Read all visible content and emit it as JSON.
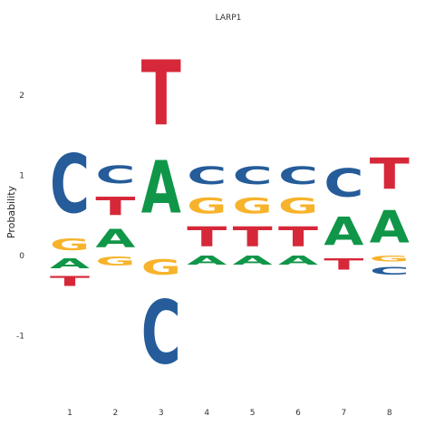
{
  "chart_data": {
    "type": "sequence-logo",
    "title": "LARP1",
    "xlabel": "",
    "ylabel": "Probability",
    "ylim": [
      -1.65,
      2.75
    ],
    "yticks": [
      -1,
      0,
      1,
      2
    ],
    "grid": false,
    "colors": {
      "A": "#109648",
      "C": "#255c99",
      "G": "#f7b32b",
      "T": "#d62839"
    },
    "positions": [
      {
        "x": "1",
        "stack": [
          {
            "base": "T",
            "y0": -0.42,
            "y1": -0.22
          },
          {
            "base": "A",
            "y0": -0.2,
            "y1": 0.0
          },
          {
            "base": "G",
            "y0": 0.02,
            "y1": 0.25
          },
          {
            "base": "C",
            "y0": 0.3,
            "y1": 1.48
          }
        ]
      },
      {
        "x": "2",
        "stack": [
          {
            "base": "G",
            "y0": -0.16,
            "y1": 0.02
          },
          {
            "base": "A",
            "y0": 0.03,
            "y1": 0.4
          },
          {
            "base": "T",
            "y0": 0.43,
            "y1": 0.8
          },
          {
            "base": "C",
            "y0": 0.83,
            "y1": 1.18
          }
        ]
      },
      {
        "x": "3",
        "stack": [
          {
            "base": "C",
            "y0": -1.6,
            "y1": -0.33
          },
          {
            "base": "G",
            "y0": -0.3,
            "y1": 0.0
          },
          {
            "base": "A",
            "y0": 0.32,
            "y1": 1.37
          },
          {
            "base": "T",
            "y0": 1.37,
            "y1": 2.67
          }
        ]
      },
      {
        "x": "4",
        "stack": [
          {
            "base": "A",
            "y0": -0.15,
            "y1": 0.02
          },
          {
            "base": "T",
            "y0": 0.03,
            "y1": 0.43
          },
          {
            "base": "G",
            "y0": 0.46,
            "y1": 0.78
          },
          {
            "base": "C",
            "y0": 0.82,
            "y1": 1.17
          }
        ]
      },
      {
        "x": "5",
        "stack": [
          {
            "base": "A",
            "y0": -0.15,
            "y1": 0.02
          },
          {
            "base": "T",
            "y0": 0.03,
            "y1": 0.43
          },
          {
            "base": "G",
            "y0": 0.46,
            "y1": 0.78
          },
          {
            "base": "C",
            "y0": 0.82,
            "y1": 1.17
          }
        ]
      },
      {
        "x": "6",
        "stack": [
          {
            "base": "A",
            "y0": -0.15,
            "y1": 0.02
          },
          {
            "base": "T",
            "y0": 0.03,
            "y1": 0.43
          },
          {
            "base": "G",
            "y0": 0.46,
            "y1": 0.78
          },
          {
            "base": "C",
            "y0": 0.82,
            "y1": 1.17
          }
        ]
      },
      {
        "x": "7",
        "stack": [
          {
            "base": "T",
            "y0": -0.22,
            "y1": 0.0
          },
          {
            "base": "A",
            "y0": 0.02,
            "y1": 0.58
          },
          {
            "base": "C",
            "y0": 0.62,
            "y1": 1.18
          }
        ]
      },
      {
        "x": "8",
        "stack": [
          {
            "base": "C",
            "y0": -0.27,
            "y1": -0.12
          },
          {
            "base": "G",
            "y0": -0.1,
            "y1": 0.02
          },
          {
            "base": "A",
            "y0": 0.03,
            "y1": 0.68
          },
          {
            "base": "T",
            "y0": 0.7,
            "y1": 1.33
          }
        ]
      }
    ]
  }
}
